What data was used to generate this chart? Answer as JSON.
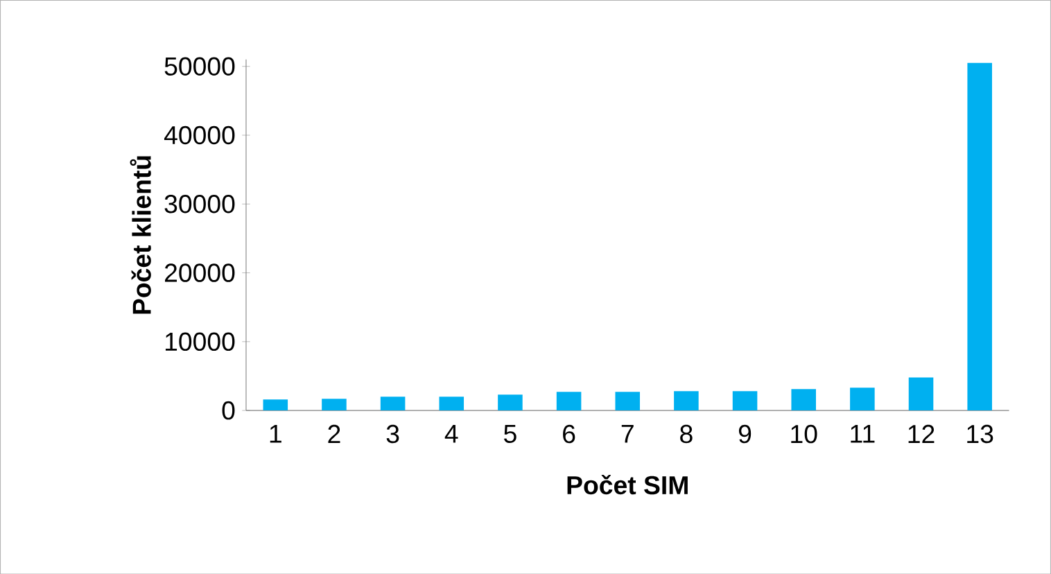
{
  "chart_data": {
    "type": "bar",
    "xlabel": "Počet SIM",
    "ylabel": "Počet klientů",
    "categories": [
      "1",
      "2",
      "3",
      "4",
      "5",
      "6",
      "7",
      "8",
      "9",
      "10",
      "11",
      "12",
      "13"
    ],
    "values": [
      1600,
      1700,
      2000,
      2000,
      2300,
      2700,
      2700,
      2800,
      2800,
      3100,
      3300,
      4800,
      50500
    ],
    "color": "#00b0f0",
    "ylim": [
      0,
      51000
    ],
    "yticks": [
      0,
      10000,
      20000,
      30000,
      40000,
      50000
    ],
    "grid": false
  }
}
